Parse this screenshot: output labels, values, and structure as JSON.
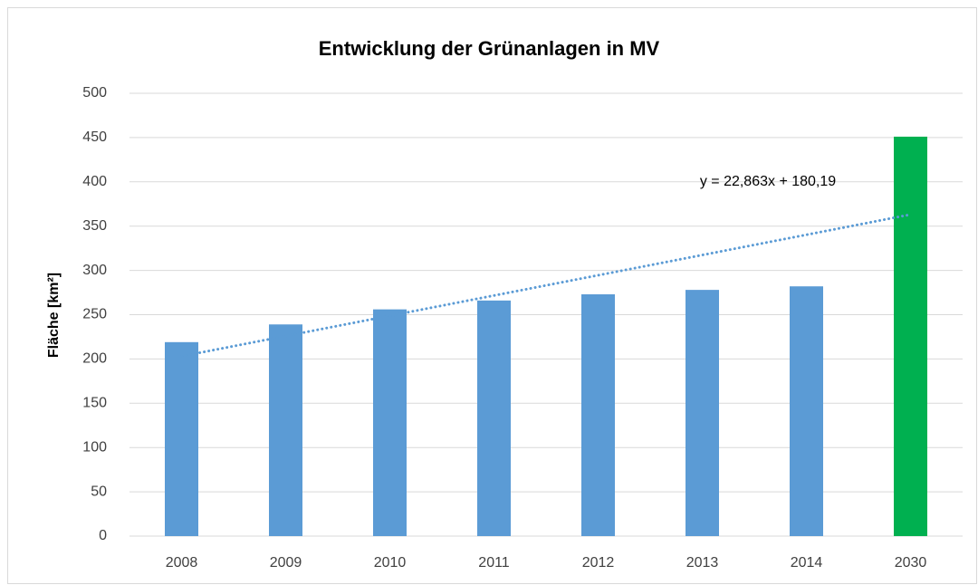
{
  "chart_data": {
    "type": "bar",
    "title": "Entwicklung der Grünanlagen in MV",
    "y_label": "Fläche [km²]",
    "categories": [
      "2008",
      "2009",
      "2010",
      "2011",
      "2012",
      "2013",
      "2014",
      "2030"
    ],
    "values": [
      219,
      239,
      256,
      266,
      273,
      278,
      282,
      451
    ],
    "colors": [
      "#5b9bd5",
      "#5b9bd5",
      "#5b9bd5",
      "#5b9bd5",
      "#5b9bd5",
      "#5b9bd5",
      "#5b9bd5",
      "#00b050"
    ],
    "ylim": [
      0,
      500
    ],
    "yticks": [
      0,
      50,
      100,
      150,
      200,
      250,
      300,
      350,
      400,
      450,
      500
    ],
    "grid": true,
    "trendline": {
      "slope": 22.863,
      "intercept": 180.19,
      "label": "y = 22,863x + 180,19",
      "color": "#5b9bd5"
    }
  }
}
